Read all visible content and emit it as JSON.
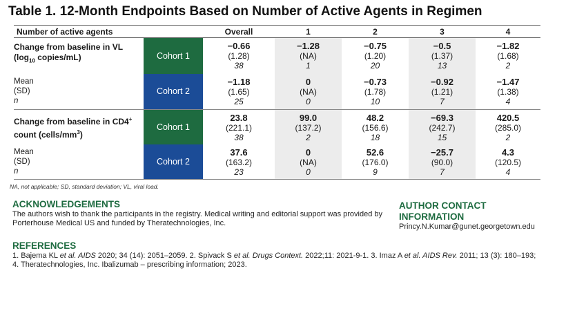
{
  "title": "Table 1. 12-Month Endpoints Based on Number of Active Agents in Regimen",
  "table": {
    "header": [
      "Number of active agents",
      "Overall",
      "1",
      "2",
      "3",
      "4"
    ],
    "groups": [
      {
        "label_pre": "Change from baseline in VL (log",
        "label_sub": "10",
        "label_post": " copies/mL)",
        "rows": [
          {
            "cohort": "Cohort 1",
            "cells": [
              {
                "v": "−0.66",
                "sd": "(1.28)",
                "n": "38"
              },
              {
                "v": "−1.28",
                "sd": "(NA)",
                "n": "1"
              },
              {
                "v": "−0.75",
                "sd": "(1.20)",
                "n": "20"
              },
              {
                "v": "−0.5",
                "sd": "(1.37)",
                "n": "13"
              },
              {
                "v": "−1.82",
                "sd": "(1.68)",
                "n": "2"
              }
            ]
          },
          {
            "cohort": "Cohort 2",
            "cells": [
              {
                "v": "−1.18",
                "sd": "(1.65)",
                "n": "25"
              },
              {
                "v": "0",
                "sd": "(NA)",
                "n": "0"
              },
              {
                "v": "−0.73",
                "sd": "(1.78)",
                "n": "10"
              },
              {
                "v": "−0.92",
                "sd": "(1.21)",
                "n": "7"
              },
              {
                "v": "−1.47",
                "sd": "(1.38)",
                "n": "4"
              }
            ]
          }
        ]
      },
      {
        "label_pre": "Change from baseline in CD4",
        "label_sup": "+",
        "label_post": " count (cells/mm",
        "label_sup2": "3",
        "label_end": ")",
        "rows": [
          {
            "cohort": "Cohort 1",
            "cells": [
              {
                "v": "23.8",
                "sd": "(221.1)",
                "n": "38"
              },
              {
                "v": "99.0",
                "sd": "(137.2)",
                "n": "2"
              },
              {
                "v": "48.2",
                "sd": "(156.6)",
                "n": "18"
              },
              {
                "v": "−69.3",
                "sd": "(242.7)",
                "n": "15"
              },
              {
                "v": "420.5",
                "sd": "(285.0)",
                "n": "2"
              }
            ]
          },
          {
            "cohort": "Cohort 2",
            "cells": [
              {
                "v": "37.6",
                "sd": "(163.2)",
                "n": "23"
              },
              {
                "v": "0",
                "sd": "(NA)",
                "n": "0"
              },
              {
                "v": "52.6",
                "sd": "(176.0)",
                "n": "9"
              },
              {
                "v": "−25.7",
                "sd": "(90.0)",
                "n": "7"
              },
              {
                "v": "4.3",
                "sd": "(120.5)",
                "n": "4"
              }
            ]
          }
        ]
      }
    ],
    "stat_labels": {
      "mean": "Mean",
      "sd": "(SD)",
      "n": "n"
    }
  },
  "footnote": "NA, not applicable; SD, standard deviation; VL, viral load.",
  "acknowledgements": {
    "title": "ACKNOWLEDGEMENTS",
    "body": "The authors wish to thank the participants in the registry. Medical writing and editorial support was provided by Porterhouse Medical US and funded by Theratechnologies, Inc."
  },
  "contact": {
    "title": "AUTHOR CONTACT INFORMATION",
    "email": "Princy.N.Kumar@gunet.georgetown.edu"
  },
  "references": {
    "title": "REFERENCES",
    "r1a": "1. Bajema KL ",
    "r1i": "et al. AIDS",
    "r1b": " 2020; 34 (14): 2051–2059. 2. Spivack S ",
    "r2i": "et al. Drugs Context.",
    "r2b": " 2022;11: 2021-9-1. 3. Imaz A ",
    "r3i": "et al. AIDS Rev.",
    "r3b": " 2011; 13 (3): 180–193;",
    "r4": "4. Theratechnologies, Inc. Ibalizumab – prescribing information; 2023."
  }
}
